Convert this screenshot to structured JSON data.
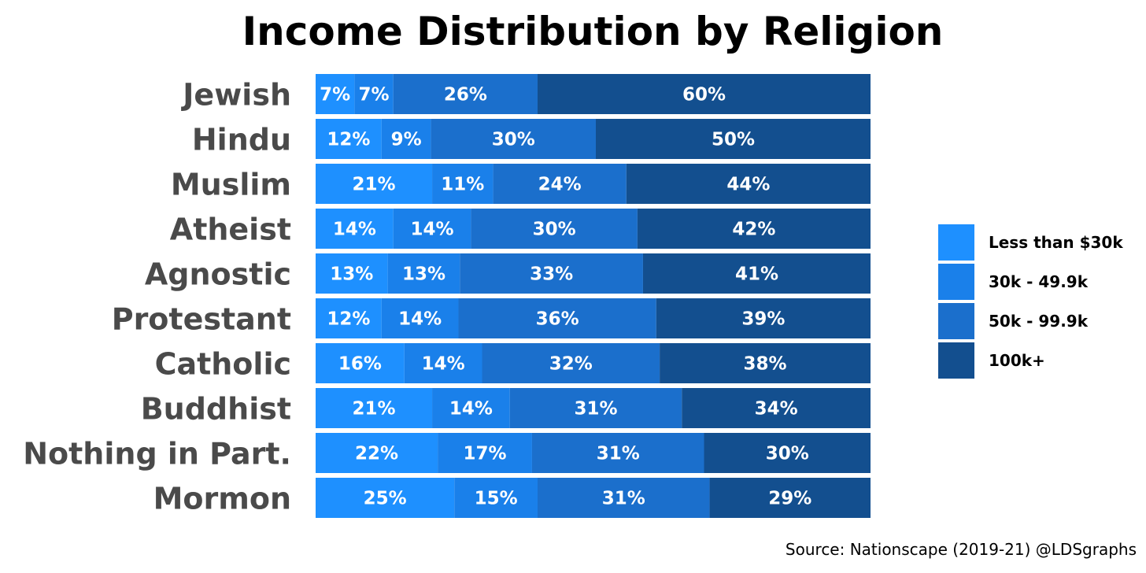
{
  "chart_data": {
    "type": "bar",
    "orientation": "horizontal",
    "stacked": true,
    "title": "Income Distribution by Religion",
    "categories": [
      "Jewish",
      "Hindu",
      "Muslim",
      "Atheist",
      "Agnostic",
      "Protestant",
      "Catholic",
      "Buddhist",
      "Nothing in Part.",
      "Mormon"
    ],
    "series": [
      {
        "name": "Less than $30k",
        "color": "#1e90ff",
        "values": [
          7,
          12,
          21,
          14,
          13,
          12,
          16,
          21,
          22,
          25
        ]
      },
      {
        "name": "30k - 49.9k",
        "color": "#1a80ea",
        "values": [
          7,
          9,
          11,
          14,
          13,
          14,
          14,
          14,
          17,
          15
        ]
      },
      {
        "name": "50k - 99.9k",
        "color": "#1b6fcc",
        "values": [
          26,
          30,
          24,
          30,
          33,
          36,
          32,
          31,
          31,
          31
        ]
      },
      {
        "name": "100k+",
        "color": "#134f8f",
        "values": [
          60,
          50,
          44,
          42,
          41,
          39,
          38,
          34,
          30,
          29
        ]
      }
    ],
    "value_suffix": "%",
    "legend_position": "right",
    "grid": false,
    "xlabel": "",
    "ylabel": "",
    "source": "Source: Nationscape (2019-21) @LDSgraphs"
  }
}
